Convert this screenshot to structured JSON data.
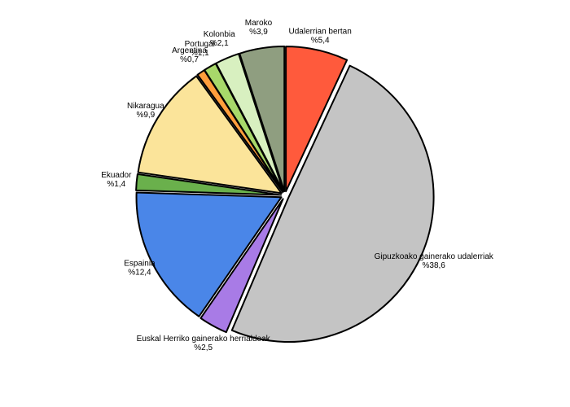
{
  "chart_data": {
    "type": "pie",
    "categories": [
      "Udalerrian bertan",
      "Gipuzkoako gainerako udalerriak",
      "Euskal Herriko gainerako herrialdeak",
      "Espainia",
      "Ekuador",
      "Nikaragua",
      "Argentina",
      "Portugal",
      "Kolonbia",
      "Maroko"
    ],
    "values": [
      5.4,
      38.6,
      2.5,
      12.4,
      1.4,
      9.9,
      0.7,
      1.1,
      2.1,
      3.9
    ],
    "value_labels": [
      "%5,4",
      "%38,6",
      "%2,5",
      "%12,4",
      "%1,4",
      "%9,9",
      "%0,7",
      "%1,1",
      "%2,1",
      "%3,9"
    ],
    "colors": [
      "#ff5a3c",
      "#c4c4c4",
      "#a87be6",
      "#4a86e8",
      "#6ab04c",
      "#fbe49a",
      "#ff9e3c",
      "#a8d86a",
      "#d8f0c0",
      "#8f9e80"
    ]
  }
}
